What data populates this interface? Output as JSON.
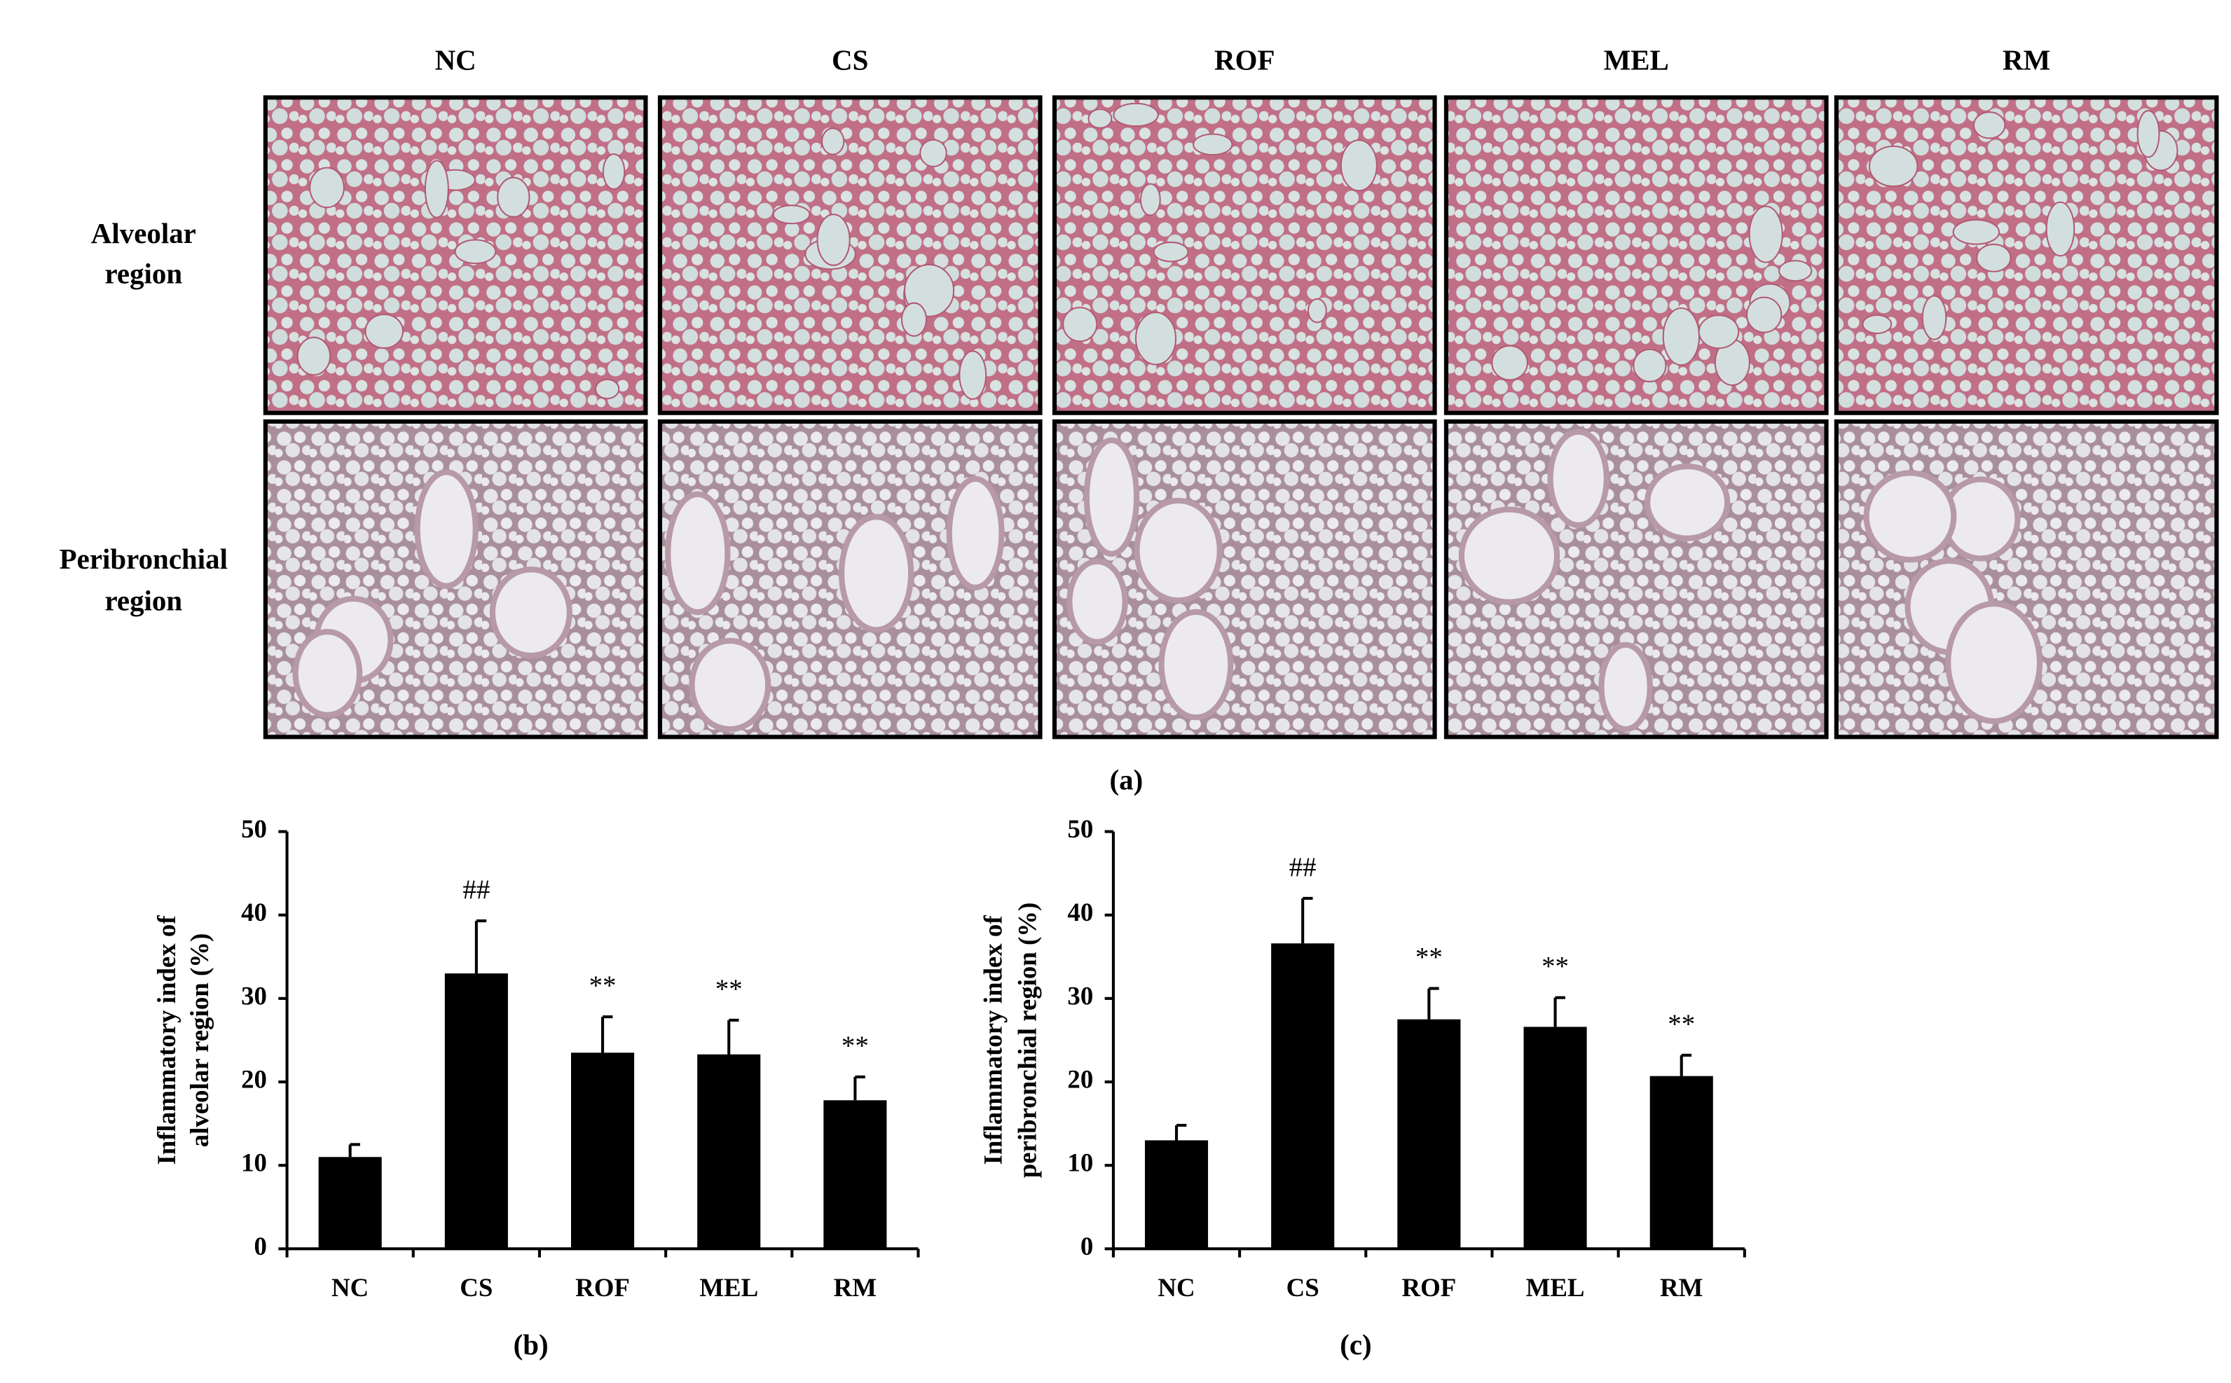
{
  "panel_a": {
    "columns": [
      "NC",
      "CS",
      "ROF",
      "MEL",
      "RM"
    ],
    "rows": [
      [
        "Alveolar",
        "region"
      ],
      [
        "Peribronchial",
        "region"
      ]
    ],
    "label": "(a)"
  },
  "chart_data": [
    {
      "type": "bar",
      "categories": [
        "NC",
        "CS",
        "ROF",
        "MEL",
        "RM"
      ],
      "values": [
        11,
        33,
        23.5,
        23.3,
        17.8
      ],
      "errors": [
        1.5,
        6.3,
        4.3,
        4.1,
        2.8
      ],
      "annotations": [
        null,
        "##",
        "**",
        "**",
        "**"
      ],
      "color": "#000000",
      "ylim": [
        0,
        50
      ],
      "yticks": [
        0,
        10,
        20,
        30,
        40,
        50
      ],
      "ylabel": [
        "Inflammatory index of",
        "alveolar region (%)"
      ],
      "label": "(b)"
    },
    {
      "type": "bar",
      "categories": [
        "NC",
        "CS",
        "ROF",
        "MEL",
        "RM"
      ],
      "values": [
        13,
        36.6,
        27.5,
        26.6,
        20.7
      ],
      "errors": [
        1.8,
        5.4,
        3.7,
        3.5,
        2.5
      ],
      "annotations": [
        null,
        "##",
        "**",
        "**",
        "**"
      ],
      "color": "#000000",
      "ylim": [
        0,
        50
      ],
      "yticks": [
        0,
        10,
        20,
        30,
        40,
        50
      ],
      "ylabel": [
        "Inflammatory index of",
        "peribronchial region (%)"
      ],
      "label": "(c)"
    }
  ]
}
